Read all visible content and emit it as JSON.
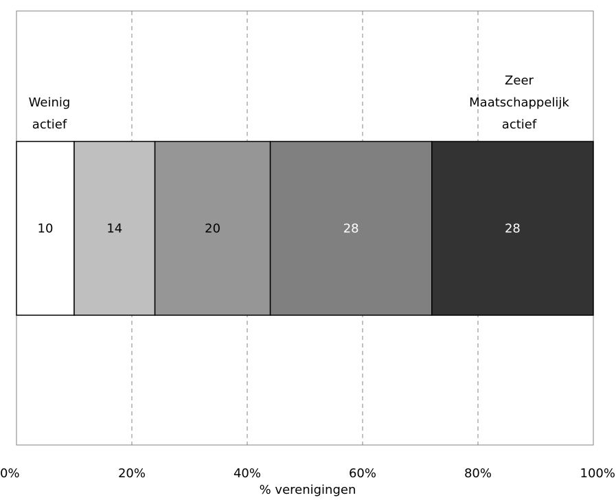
{
  "chart_data": {
    "type": "bar",
    "orientation": "horizontal-stacked",
    "title": "",
    "xlabel": "% verenigingen",
    "ylabel": "",
    "xlim": [
      0,
      100
    ],
    "x_ticks": [
      "0%",
      "20%",
      "40%",
      "60%",
      "80%",
      "100%"
    ],
    "x_tick_values": [
      0,
      20,
      40,
      60,
      80,
      100
    ],
    "grid": "vertical dashed",
    "segments": [
      {
        "value": 10,
        "label": "10",
        "color": "#ffffff",
        "label_color": "#000000"
      },
      {
        "value": 14,
        "label": "14",
        "color": "#bfbfbf",
        "label_color": "#000000"
      },
      {
        "value": 20,
        "label": "20",
        "color": "#969696",
        "label_color": "#000000"
      },
      {
        "value": 28,
        "label": "28",
        "color": "#808080",
        "label_color": "#ffffff"
      },
      {
        "value": 28,
        "label": "28",
        "color": "#333333",
        "label_color": "#ffffff"
      }
    ],
    "annotations": [
      {
        "lines": [
          "Weinig",
          "actief"
        ],
        "anchor": "left"
      },
      {
        "lines": [
          "Zeer",
          "Maatschappelijk",
          "actief"
        ],
        "anchor": "right"
      }
    ]
  }
}
